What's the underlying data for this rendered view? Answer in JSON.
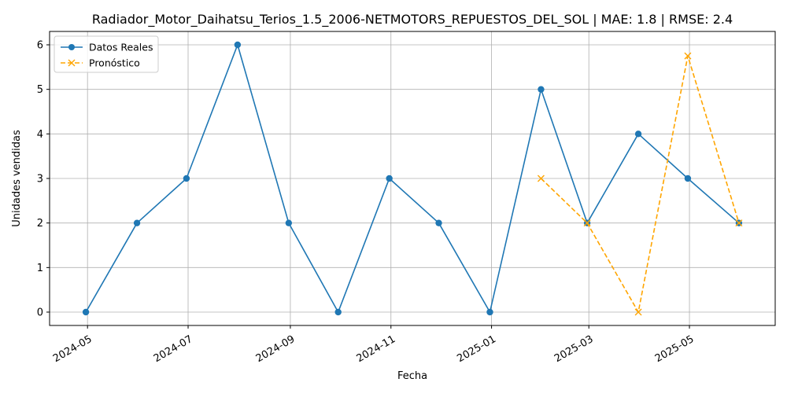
{
  "chart_data": {
    "type": "line",
    "title": "Radiador_Motor_Daihatsu_Terios_1.5_2006-NETMOTORS_REPUESTOS_DEL_SOL | MAE: 1.8 | RMSE: 2.4",
    "xlabel": "Fecha",
    "ylabel": "Unidades vendidas",
    "ylim": [
      -0.3,
      6.3
    ],
    "xlim": [
      "2024-04-08",
      "2025-06-22"
    ],
    "grid": true,
    "legend_position": "top-left",
    "x_tick_labels": [
      "2024-05",
      "2024-07",
      "2024-09",
      "2024-11",
      "2025-01",
      "2025-03",
      "2025-05"
    ],
    "x_tick_dates": [
      "2024-05-01",
      "2024-07-01",
      "2024-09-01",
      "2024-11-01",
      "2025-01-01",
      "2025-03-01",
      "2025-05-01"
    ],
    "y_ticks": [
      0,
      1,
      2,
      3,
      4,
      5,
      6
    ],
    "y_tick_labels": [
      "0",
      "1",
      "2",
      "3",
      "4",
      "5",
      "6"
    ],
    "series": [
      {
        "name": "Datos Reales",
        "color": "#1f77b4",
        "style": "solid",
        "marker": "circle",
        "x": [
          "2024-04-30",
          "2024-05-31",
          "2024-06-30",
          "2024-07-31",
          "2024-08-31",
          "2024-09-30",
          "2024-10-31",
          "2024-11-30",
          "2024-12-31",
          "2025-01-31",
          "2025-02-28",
          "2025-03-31",
          "2025-04-30",
          "2025-05-31"
        ],
        "values": [
          0,
          2,
          3,
          6,
          2,
          0,
          3,
          2,
          0,
          5,
          2,
          4,
          3,
          2
        ]
      },
      {
        "name": "Pronóstico",
        "color": "#ffa500",
        "style": "dashed",
        "marker": "x",
        "x": [
          "2025-01-31",
          "2025-02-28",
          "2025-03-31",
          "2025-04-30",
          "2025-05-31"
        ],
        "values": [
          3,
          2,
          0,
          5.75,
          2
        ]
      }
    ]
  }
}
